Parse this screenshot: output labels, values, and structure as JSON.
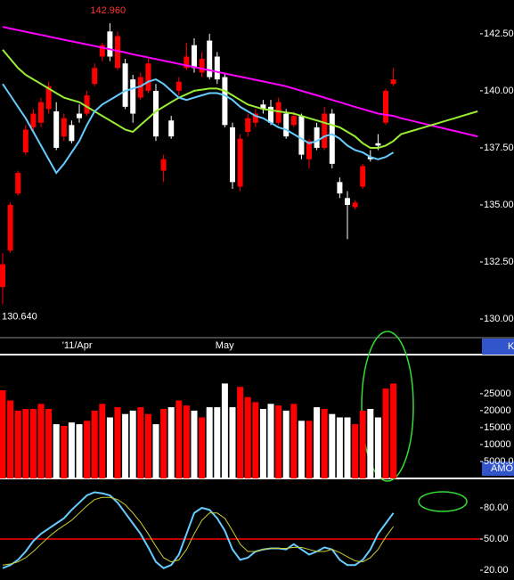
{
  "chart_data": [
    {
      "type": "candlestick",
      "categories": [
        null,
        null,
        null,
        null,
        null,
        null,
        null,
        null,
        "'11/Apr",
        null,
        null,
        null,
        null,
        null,
        null,
        null,
        null,
        null,
        null,
        null,
        null,
        null,
        null,
        null,
        null,
        null,
        null,
        null,
        "May",
        null,
        null,
        null,
        null,
        null,
        null,
        null,
        null,
        null,
        null,
        null,
        null,
        null,
        null,
        null,
        null,
        null,
        null,
        null,
        null,
        null,
        null,
        null,
        null,
        null,
        null,
        null,
        null,
        null,
        null,
        null,
        null,
        null,
        null
      ],
      "open": [
        131.4,
        133.0,
        135.5,
        137.3,
        138.4,
        138.6,
        139.2,
        139.1,
        138.0,
        138.5,
        139.0,
        139.0,
        140.3,
        141.5,
        142.6,
        141.0,
        141.2,
        140.5,
        139.7,
        140.0,
        140.0,
        136.5,
        138.7,
        140.0,
        141.0,
        142.0,
        140.8,
        142.2,
        141.5,
        140.6,
        138.4,
        135.8,
        138.2,
        138.6,
        139.4,
        139.3,
        138.6,
        139.0,
        138.5,
        138.9,
        137.0,
        138.4,
        137.5,
        139.0,
        136.0,
        135.3,
        134.9,
        135.8,
        137.1,
        137.7,
        138.6,
        140.3,
        null,
        null,
        null,
        null,
        null,
        null,
        null,
        null,
        null,
        null,
        null
      ],
      "high": [
        132.9,
        135.1,
        136.5,
        138.5,
        139.2,
        139.7,
        140.4,
        139.5,
        139.0,
        138.7,
        139.4,
        140.0,
        141.2,
        142.1,
        142.96,
        142.6,
        141.4,
        140.7,
        140.8,
        141.4,
        140.3,
        137.2,
        138.9,
        140.6,
        142.1,
        142.3,
        141.7,
        142.5,
        141.7,
        140.8,
        138.6,
        138.1,
        139.0,
        139.2,
        139.6,
        139.6,
        139.7,
        139.2,
        139.1,
        139.0,
        137.9,
        138.6,
        139.3,
        139.2,
        136.2,
        135.6,
        135.2,
        136.8,
        137.4,
        138.1,
        140.1,
        141.0,
        null,
        null,
        null,
        null,
        null,
        null,
        null,
        null,
        null,
        null,
        null
      ],
      "low": [
        130.64,
        132.9,
        135.4,
        137.2,
        138.2,
        138.4,
        139.0,
        137.4,
        137.8,
        137.7,
        138.6,
        138.9,
        140.2,
        141.3,
        141.3,
        140.9,
        139.2,
        138.6,
        139.6,
        139.9,
        137.8,
        136.0,
        137.9,
        139.8,
        140.9,
        140.8,
        140.6,
        140.5,
        140.3,
        138.4,
        135.7,
        135.6,
        138.0,
        138.4,
        139.0,
        138.5,
        138.5,
        137.9,
        138.4,
        137.0,
        136.6,
        137.4,
        137.4,
        136.6,
        135.3,
        133.5,
        134.8,
        135.7,
        136.9,
        137.4,
        138.5,
        140.2,
        null,
        null,
        null,
        null,
        null,
        null,
        null,
        null,
        null,
        null,
        null
      ],
      "close": [
        132.4,
        135.0,
        136.4,
        138.3,
        139.0,
        139.5,
        140.2,
        137.5,
        138.8,
        137.8,
        138.8,
        139.8,
        141.0,
        142.0,
        141.5,
        142.4,
        139.3,
        139.0,
        140.6,
        141.2,
        138.0,
        137.0,
        138.0,
        140.4,
        141.5,
        141.0,
        141.4,
        140.6,
        140.5,
        138.5,
        136.0,
        137.9,
        138.8,
        139.0,
        139.2,
        138.6,
        139.5,
        138.0,
        138.9,
        137.2,
        137.8,
        137.5,
        139.0,
        136.8,
        135.5,
        135.0,
        135.1,
        136.7,
        137.0,
        137.6,
        140.0,
        140.5,
        null,
        null,
        null,
        null,
        null,
        null,
        null,
        null,
        null,
        null,
        null
      ],
      "up_color": "#ff0000",
      "down_color": "#ffffff",
      "series": [
        {
          "color": "#ff00ff",
          "values": [
            142.8,
            142.73,
            142.66,
            142.59,
            142.52,
            142.45,
            142.38,
            142.31,
            142.24,
            142.17,
            142.1,
            142.03,
            141.96,
            141.89,
            141.82,
            141.75,
            141.68,
            141.6,
            141.53,
            141.46,
            141.39,
            141.32,
            141.25,
            141.18,
            141.11,
            141.04,
            140.97,
            140.9,
            140.83,
            140.76,
            140.69,
            140.62,
            140.55,
            140.48,
            140.41,
            140.34,
            140.27,
            140.2,
            140.1,
            140.0,
            139.9,
            139.8,
            139.7,
            139.6,
            139.5,
            139.4,
            139.3,
            139.2,
            139.1,
            139.0,
            138.95,
            138.9,
            138.8,
            138.72,
            138.64,
            138.56,
            138.48,
            138.4,
            138.32,
            138.24,
            138.16,
            138.08,
            138.0
          ]
        },
        {
          "color": "#99ee33",
          "values": [
            141.8,
            141.4,
            141.0,
            140.7,
            140.5,
            140.3,
            140.1,
            139.9,
            139.7,
            139.6,
            139.5,
            139.3,
            139.1,
            138.9,
            138.7,
            138.5,
            138.3,
            138.2,
            138.5,
            138.8,
            139.1,
            139.3,
            139.5,
            139.7,
            139.85,
            140.0,
            140.05,
            140.1,
            140.1,
            140.0,
            139.8,
            139.6,
            139.4,
            139.3,
            139.2,
            139.15,
            139.1,
            139.05,
            139.0,
            138.9,
            138.8,
            138.7,
            138.6,
            138.5,
            138.4,
            138.2,
            138.0,
            137.7,
            137.5,
            137.5,
            137.6,
            137.8,
            138.1,
            138.2,
            138.3,
            138.4,
            138.5,
            138.6,
            138.7,
            138.8,
            138.9,
            139.0,
            139.1
          ]
        },
        {
          "color": "#66ccff",
          "values": [
            140.3,
            139.8,
            139.3,
            138.8,
            138.2,
            137.6,
            137.0,
            136.4,
            136.8,
            137.3,
            137.8,
            138.5,
            139.1,
            139.4,
            139.6,
            139.8,
            140.0,
            140.1,
            140.2,
            140.4,
            140.5,
            140.3,
            140.0,
            139.7,
            139.6,
            139.7,
            139.8,
            139.9,
            139.9,
            139.8,
            139.6,
            139.3,
            139.1,
            138.9,
            138.8,
            138.6,
            138.4,
            138.3,
            138.1,
            137.9,
            137.7,
            137.8,
            138.0,
            138.1,
            137.9,
            137.6,
            137.4,
            137.3,
            137.1,
            137.0,
            137.1,
            137.3,
            null,
            null,
            null,
            null,
            null,
            null,
            null,
            null,
            null,
            null,
            null
          ]
        }
      ],
      "annotations": [
        {
          "value": 142.96,
          "label": "142.960",
          "color": "#ff3030"
        },
        {
          "value": 130.64,
          "label": "130.640",
          "color": "#ffffff"
        }
      ],
      "ylim": [
        129.22,
        143.98
      ],
      "yticks": [
        {
          "value": 142.5,
          "label": "142.50"
        },
        {
          "value": 140,
          "label": "140.00"
        },
        {
          "value": 137.5,
          "label": "137.50"
        },
        {
          "value": 135,
          "label": "135.00"
        },
        {
          "value": 132.5,
          "label": "132.50"
        },
        {
          "value": 130,
          "label": "130.00"
        }
      ],
      "panel_label": "K"
    },
    {
      "type": "bar",
      "values": [
        26000,
        23000,
        20000,
        20500,
        20500,
        22000,
        20500,
        16000,
        15500,
        16500,
        16000,
        17000,
        20000,
        22000,
        18000,
        21000,
        19000,
        20000,
        21000,
        19000,
        16000,
        20500,
        21000,
        23000,
        21500,
        20000,
        18000,
        21000,
        21000,
        28000,
        21000,
        27000,
        24000,
        22500,
        20500,
        22000,
        21500,
        20000,
        22000,
        17000,
        17000,
        21000,
        20500,
        19000,
        18000,
        18000,
        16000,
        20000,
        20500,
        18000,
        26500,
        28000,
        null,
        null,
        null,
        null,
        null,
        null,
        null,
        null,
        null,
        null,
        null
      ],
      "ylim": [
        0,
        36000
      ],
      "yticks": [
        25000,
        20000,
        15000,
        10000,
        {
          "value": 5000,
          "label": "5000.0"
        }
      ],
      "panel_label": "AMO"
    },
    {
      "type": "line",
      "series": [
        {
          "color": "#66ccff",
          "values": [
            22,
            25,
            30,
            38,
            48,
            55,
            60,
            65,
            70,
            78,
            85,
            92,
            95,
            94,
            92,
            85,
            75,
            65,
            55,
            42,
            28,
            22,
            25,
            35,
            55,
            75,
            80,
            78,
            70,
            58,
            40,
            30,
            32,
            38,
            40,
            41,
            41,
            40,
            45,
            40,
            35,
            38,
            42,
            40,
            30,
            25,
            25,
            30,
            40,
            55,
            65,
            75,
            null,
            null,
            null,
            null,
            null,
            null,
            null,
            null,
            null,
            null,
            null
          ]
        },
        {
          "color": "#cccc33",
          "values": [
            25,
            26,
            28,
            32,
            38,
            45,
            52,
            58,
            63,
            68,
            75,
            82,
            88,
            90,
            90,
            88,
            83,
            75,
            66,
            55,
            43,
            32,
            28,
            30,
            40,
            55,
            68,
            75,
            75,
            70,
            58,
            45,
            38,
            38,
            40,
            41,
            41,
            41,
            42,
            42,
            40,
            38,
            38,
            40,
            37,
            33,
            29,
            28,
            32,
            40,
            52,
            62,
            null,
            null,
            null,
            null,
            null,
            null,
            null,
            null,
            null,
            null,
            null
          ]
        }
      ],
      "hline": {
        "value": 50,
        "color": "#ff0000"
      },
      "ylim": [
        10.6,
        105.7
      ],
      "yticks": [
        {
          "value": 80,
          "label": "80.00"
        },
        {
          "value": 50,
          "label": "50.00"
        },
        {
          "value": 20,
          "label": "20.00"
        }
      ]
    }
  ]
}
